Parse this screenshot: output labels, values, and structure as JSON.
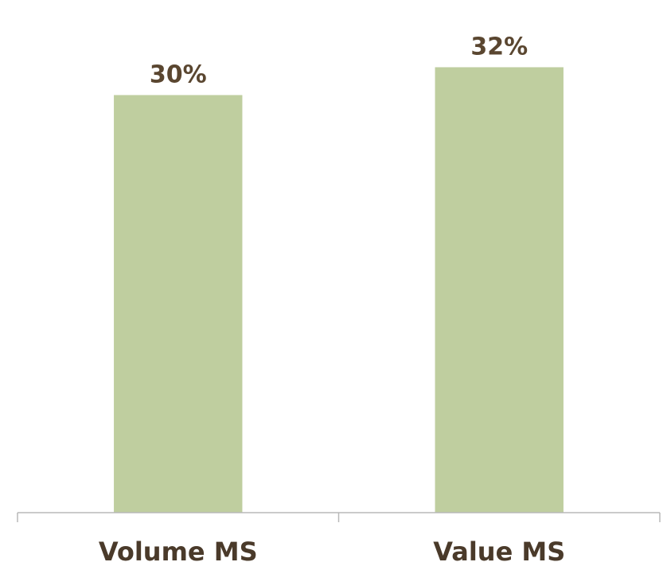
{
  "chart_data": {
    "type": "bar",
    "categories": [
      "Volume MS",
      "Value MS"
    ],
    "values": [
      30,
      32
    ],
    "value_labels": [
      "30%",
      "32%"
    ],
    "title": "",
    "xlabel": "",
    "ylabel": "",
    "ylim": [
      0,
      35
    ],
    "grid": false,
    "legend": "none",
    "bar_color": "#bfce9f",
    "axis_color": "#b8b8b8",
    "label_color": "#5a4630"
  }
}
